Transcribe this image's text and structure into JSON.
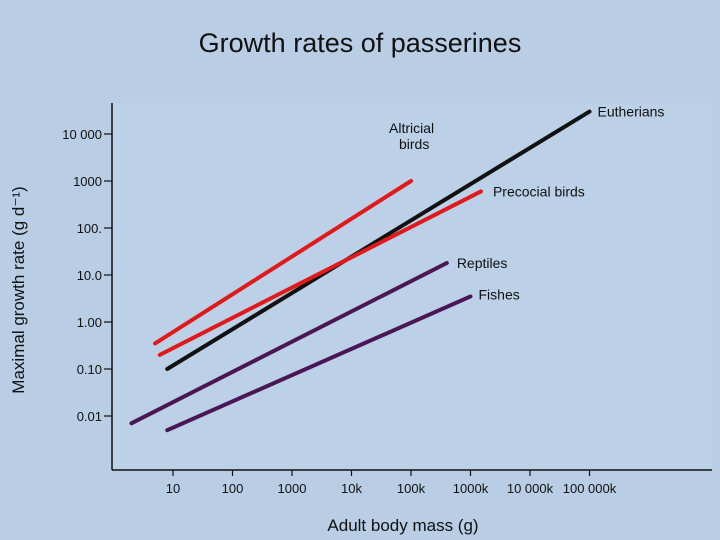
{
  "slide": {
    "title": "Growth rates of passerines"
  },
  "chart_data": {
    "type": "line",
    "title": "Growth rates of passerines",
    "xlabel": "Adult body mass (g)",
    "ylabel": "Maximal growth rate (g d⁻¹)",
    "x_scale": "log",
    "y_scale": "log",
    "x_ticks": [
      "10",
      "100",
      "1000",
      "10k",
      "100k",
      "1000k",
      "10 000k",
      "100 000k"
    ],
    "y_ticks": [
      "10 000",
      "1000",
      "100.",
      "10.0",
      "1.00",
      "0.10",
      "0.01"
    ],
    "xlim": [
      1,
      500000000
    ],
    "ylim": [
      0.001,
      40000
    ],
    "grid": false,
    "series": [
      {
        "name": "Eutherians",
        "color": "#111111",
        "x": [
          8,
          100000000
        ],
        "y": [
          0.1,
          30000
        ]
      },
      {
        "name": "Altricial birds",
        "color": "#e0191b",
        "x": [
          5,
          100000
        ],
        "y": [
          0.35,
          1000
        ]
      },
      {
        "name": "Precocial birds",
        "color": "#e0191b",
        "x": [
          6,
          1500000
        ],
        "y": [
          0.2,
          600
        ]
      },
      {
        "name": "Reptiles",
        "color": "#4b1656",
        "x": [
          2,
          400000
        ],
        "y": [
          0.007,
          18
        ]
      },
      {
        "name": "Fishes",
        "color": "#4b1656",
        "x": [
          8,
          1000000
        ],
        "y": [
          0.005,
          3.5
        ]
      }
    ]
  }
}
